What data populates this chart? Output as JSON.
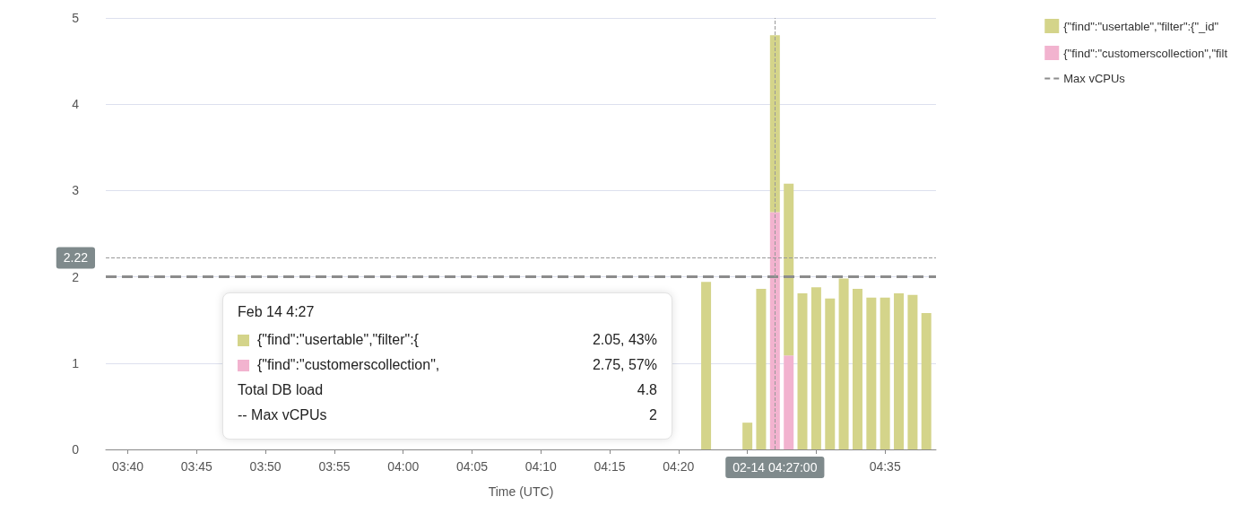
{
  "chart_data": {
    "type": "bar",
    "stacked": true,
    "xlabel": "Time (UTC)",
    "x": [
      4.3667,
      4.4167,
      4.4333,
      4.45,
      4.4667,
      4.4833,
      4.5,
      4.5167,
      4.5333,
      4.55,
      4.5667,
      4.5833,
      4.6,
      4.6167,
      4.6333
    ],
    "series": [
      {
        "name": "{\"find\":\"customerscollection\",\"filt",
        "color": "#f2b3cf",
        "values": [
          null,
          null,
          null,
          2.75,
          1.09,
          null,
          null,
          null,
          null,
          null,
          null,
          null,
          null,
          null,
          null
        ]
      },
      {
        "name": "{\"find\":\"usertable\",\"filter\":{\"_id\"",
        "color": "#d4d48a",
        "values": [
          1.94,
          0.31,
          1.86,
          2.05,
          1.99,
          1.81,
          1.88,
          1.75,
          1.98,
          1.86,
          1.76,
          1.76,
          1.81,
          1.79,
          1.58
        ]
      },
      {
        "name": "Max vCPUs",
        "type": "line",
        "color": "#8c8c8c",
        "line_style": "dashed",
        "x": [
          3.64,
          4.645
        ],
        "values": [
          2,
          2
        ]
      }
    ],
    "xlim": [
      3.64,
      4.645
    ],
    "xticks": [
      {
        "value": 3.6667,
        "label": "03:40"
      },
      {
        "value": 3.75,
        "label": "03:45"
      },
      {
        "value": 3.8333,
        "label": "03:50"
      },
      {
        "value": 3.9167,
        "label": "03:55"
      },
      {
        "value": 4,
        "label": "04:00"
      },
      {
        "value": 4.0833,
        "label": "04:05"
      },
      {
        "value": 4.1667,
        "label": "04:10"
      },
      {
        "value": 4.25,
        "label": "04:15"
      },
      {
        "value": 4.3333,
        "label": "04:20"
      },
      {
        "value": 4.4167,
        "label": null
      },
      {
        "value": 4.5,
        "label": null
      },
      {
        "value": 4.5833,
        "label": "04:35"
      }
    ],
    "ylim": [
      0,
      5
    ],
    "yticks": [
      0,
      1,
      2,
      3,
      4,
      5
    ],
    "grid": "y",
    "legend": "top right",
    "ref_lines": [
      {
        "axis": "y",
        "value": 2.22,
        "label": "2.22",
        "color": "#999999",
        "line_style": "dashed"
      },
      {
        "axis": "x",
        "value": 4.45,
        "label": "02-14 04:27:00",
        "color": "#999999",
        "line_style": "dashed"
      }
    ],
    "annotations": [
      "Feb 14 4:27",
      "{\"find\":\"usertable\",\"filter\":{",
      "2.05, 43%",
      "{\"find\":\"customerscollection\",",
      "2.75, 57%",
      "Total DB load",
      "4.8",
      "-- Max vCPUs",
      "2"
    ]
  }
}
